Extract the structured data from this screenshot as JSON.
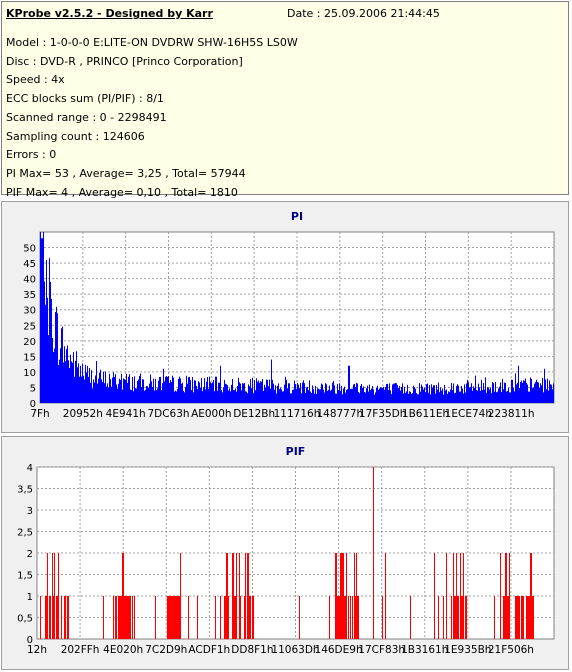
{
  "header": {
    "title": "KProbe v2.5.2 - Designed by Karr",
    "date": "Date : 25.09.2006 21:44:45"
  },
  "info_lines": [
    "Model : 1-0-0-0 E:LITE-ON DVDRW SHW-16H5S  LS0W",
    "Disc : DVD-R , PRINCO [Princo Corporation]",
    "Speed : 4x",
    "ECC blocks sum (PI/PIF) : 8/1",
    "Scanned range : 0 - 2298491",
    "Sampling count : 124606",
    "Errors : 0",
    "PI Max= 53 , Average= 3,25 , Total= 57944",
    "PIF Max= 4 , Average= 0,10 , Total= 1810"
  ],
  "colors": {
    "pi_series": "#0000ff",
    "pif_series": "#ff0000",
    "title_text": "#000080",
    "plot_bg": "#ffffff",
    "panel_bg": "#f0f0f0",
    "info_bg": "#ffffe7"
  },
  "chart_data": [
    {
      "type": "bar",
      "title": "PI",
      "ylim": [
        0,
        55
      ],
      "yticks": [
        0,
        5,
        10,
        15,
        20,
        25,
        30,
        35,
        40,
        45,
        50
      ],
      "xtick_labels": [
        "7Fh",
        "20952h",
        "4E941h",
        "7DC63h",
        "AE000h",
        "DE12Bh",
        "111716h",
        "148777h",
        "17F35Dh",
        "1B611Eh",
        "1ECE74h",
        "223811h"
      ],
      "grid": true,
      "series": [
        {
          "profile": [
            [
              0,
              52
            ],
            [
              0.003,
              50
            ],
            [
              0.008,
              45
            ],
            [
              0.015,
              36
            ],
            [
              0.025,
              27
            ],
            [
              0.035,
              21
            ],
            [
              0.05,
              16
            ],
            [
              0.07,
              12
            ],
            [
              0.09,
              9
            ],
            [
              0.12,
              7.5
            ],
            [
              0.2,
              6.5
            ],
            [
              0.3,
              6
            ],
            [
              0.45,
              5.5
            ],
            [
              0.6,
              5
            ],
            [
              0.7,
              4.5
            ],
            [
              0.8,
              5
            ],
            [
              0.9,
              5.5
            ],
            [
              1,
              6
            ]
          ],
          "spikes": [
            [
              0.003,
              53
            ],
            [
              0.012,
              46
            ],
            [
              0.45,
              14
            ],
            [
              0.35,
              12
            ],
            [
              0.6,
              12
            ],
            [
              0.93,
              12
            ],
            [
              0.98,
              11
            ]
          ]
        }
      ]
    },
    {
      "type": "bar",
      "title": "PIF",
      "ylim": [
        0,
        4
      ],
      "yticks": [
        0,
        0.5,
        1,
        1.5,
        2,
        2.5,
        3,
        3.5,
        4
      ],
      "ytick_labels": [
        "0",
        "0,5",
        "1",
        "1,5",
        "2",
        "2,5",
        "3",
        "3,5",
        "4"
      ],
      "xtick_labels": [
        "12h",
        "202FFh",
        "4E020h",
        "7C2D9h",
        "ACDF1h",
        "DD8F1h",
        "11063Dh",
        "146DE9h",
        "17CF83h",
        "1B3161h",
        "1E935Bh",
        "21F506h"
      ],
      "grid": true,
      "series": [
        {
          "max_spike": [
            0.65,
            4
          ],
          "dense_regions": [
            [
              0.01,
              0.06
            ],
            [
              0.15,
              0.19
            ],
            [
              0.25,
              0.28
            ],
            [
              0.36,
              0.42
            ],
            [
              0.57,
              0.62
            ],
            [
              0.8,
              0.83
            ],
            [
              0.9,
              0.96
            ]
          ]
        }
      ]
    }
  ]
}
